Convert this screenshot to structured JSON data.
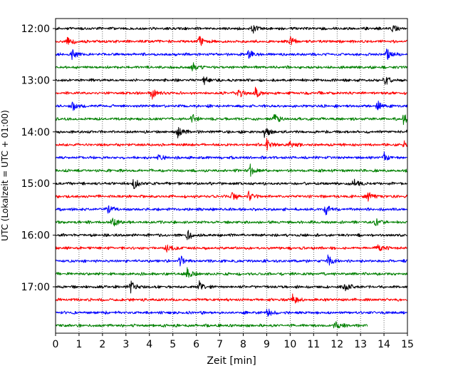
{
  "chart_data": {
    "type": "line",
    "title": "",
    "xlabel": "Zeit  [min]",
    "ylabel": "UTC (Lokalzeit = UTC + 01:00)",
    "xlim": [
      0,
      15
    ],
    "x_ticks": [
      "0",
      "1",
      "2",
      "3",
      "4",
      "5",
      "6",
      "7",
      "8",
      "9",
      "10",
      "11",
      "12",
      "13",
      "14",
      "15"
    ],
    "y_ticks": [
      "12:00",
      "13:00",
      "14:00",
      "15:00",
      "16:00",
      "17:00"
    ],
    "grid": "vertical-dotted",
    "colors": [
      "#000000",
      "#ff0000",
      "#0000ff",
      "#008000"
    ],
    "traces": [
      {
        "start": "12:00",
        "color": "#000000",
        "end_min": 15,
        "events": [
          8.4,
          14.3
        ]
      },
      {
        "start": "12:15",
        "color": "#ff0000",
        "end_min": 15,
        "events": [
          0.5,
          6.1,
          10.0
        ]
      },
      {
        "start": "12:30",
        "color": "#0000ff",
        "end_min": 15,
        "events": [
          0.7,
          8.2,
          14.1
        ]
      },
      {
        "start": "12:45",
        "color": "#008000",
        "end_min": 15,
        "events": [
          5.8
        ]
      },
      {
        "start": "13:00",
        "color": "#000000",
        "end_min": 15,
        "events": [
          6.3,
          14.0
        ]
      },
      {
        "start": "13:15",
        "color": "#ff0000",
        "end_min": 15,
        "events": [
          4.1,
          7.8,
          8.5
        ]
      },
      {
        "start": "13:30",
        "color": "#0000ff",
        "end_min": 15,
        "events": [
          0.7,
          13.7
        ]
      },
      {
        "start": "13:45",
        "color": "#008000",
        "end_min": 15,
        "events": [
          5.8,
          9.3,
          14.8
        ]
      },
      {
        "start": "14:00",
        "color": "#000000",
        "end_min": 15,
        "events": [
          5.2,
          8.9,
          15.0
        ]
      },
      {
        "start": "14:15",
        "color": "#ff0000",
        "end_min": 15,
        "events": [
          9.0,
          10.0,
          14.8
        ]
      },
      {
        "start": "14:30",
        "color": "#0000ff",
        "end_min": 15,
        "events": [
          4.3,
          14.0
        ]
      },
      {
        "start": "14:45",
        "color": "#008000",
        "end_min": 15,
        "events": [
          8.3
        ]
      },
      {
        "start": "15:00",
        "color": "#000000",
        "end_min": 15,
        "events": [
          3.3,
          12.7
        ]
      },
      {
        "start": "15:15",
        "color": "#ff0000",
        "end_min": 15,
        "events": [
          7.5,
          8.2,
          13.3
        ]
      },
      {
        "start": "15:30",
        "color": "#0000ff",
        "end_min": 15,
        "events": [
          2.2,
          11.5
        ]
      },
      {
        "start": "15:45",
        "color": "#008000",
        "end_min": 15,
        "events": [
          2.4,
          13.6
        ]
      },
      {
        "start": "16:00",
        "color": "#000000",
        "end_min": 15,
        "events": [
          5.6
        ]
      },
      {
        "start": "16:15",
        "color": "#ff0000",
        "end_min": 15,
        "events": [
          4.7,
          13.7
        ]
      },
      {
        "start": "16:30",
        "color": "#0000ff",
        "end_min": 15,
        "events": [
          5.3,
          11.6
        ]
      },
      {
        "start": "16:45",
        "color": "#008000",
        "end_min": 15,
        "events": [
          5.6
        ]
      },
      {
        "start": "17:00",
        "color": "#000000",
        "end_min": 15,
        "events": [
          3.2,
          6.1,
          12.3
        ]
      },
      {
        "start": "17:15",
        "color": "#ff0000",
        "end_min": 15,
        "events": [
          10.1
        ]
      },
      {
        "start": "17:30",
        "color": "#0000ff",
        "end_min": 15,
        "events": [
          9.0
        ]
      },
      {
        "start": "17:45",
        "color": "#008000",
        "end_min": 13.3,
        "events": [
          11.9
        ]
      }
    ]
  }
}
